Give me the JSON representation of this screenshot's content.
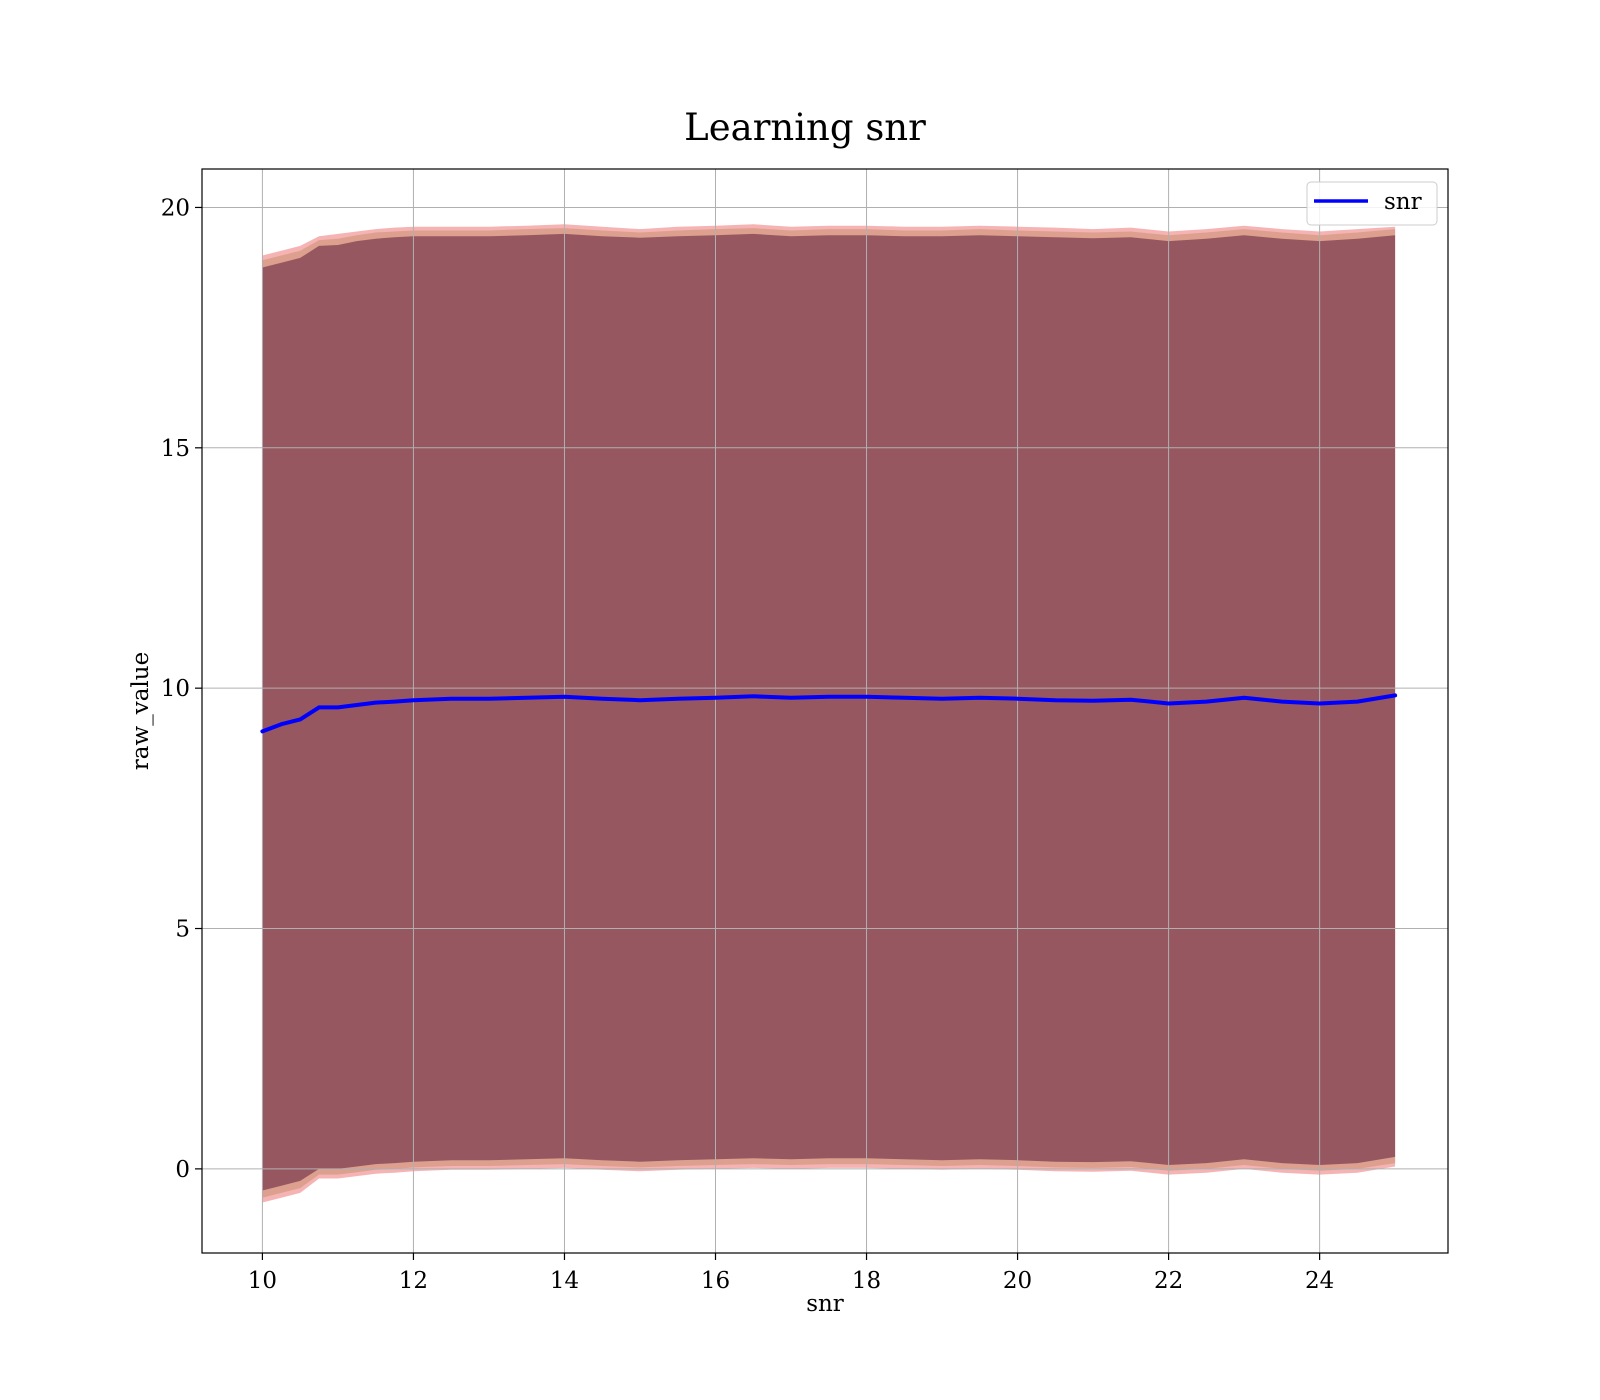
{
  "chart_data": {
    "type": "line",
    "title": "Learning snr",
    "xlabel": "snr",
    "ylabel": "raw_value",
    "xlim": [
      9.2,
      25.7
    ],
    "ylim": [
      -1.75,
      20.8
    ],
    "x_ticks": [
      10,
      12,
      14,
      16,
      18,
      20,
      22,
      24
    ],
    "y_ticks": [
      0,
      5,
      10,
      15,
      20
    ],
    "grid": true,
    "legend_position": "upper-right",
    "series": [
      {
        "name": "snr",
        "color": "#0000ff",
        "x": [
          10.0,
          10.25,
          10.5,
          10.75,
          11.0,
          11.25,
          11.5,
          11.75,
          12.0,
          12.5,
          13.0,
          13.5,
          14.0,
          14.5,
          15.0,
          15.5,
          16.0,
          16.5,
          17.0,
          17.5,
          18.0,
          18.5,
          19.0,
          19.5,
          20.0,
          20.5,
          21.0,
          21.5,
          22.0,
          22.5,
          23.0,
          23.5,
          24.0,
          24.5,
          25.0
        ],
        "y": [
          9.1,
          9.25,
          9.35,
          9.6,
          9.6,
          9.65,
          9.7,
          9.72,
          9.75,
          9.78,
          9.78,
          9.8,
          9.82,
          9.78,
          9.75,
          9.78,
          9.8,
          9.83,
          9.8,
          9.82,
          9.82,
          9.8,
          9.78,
          9.8,
          9.78,
          9.75,
          9.74,
          9.76,
          9.68,
          9.72,
          9.8,
          9.72,
          9.68,
          9.72,
          9.85
        ]
      }
    ],
    "bands": [
      {
        "color": "#f08080",
        "opacity": 0.6,
        "x": [
          10.0,
          10.25,
          10.5,
          10.75,
          11.0,
          11.25,
          11.5,
          11.75,
          12.0,
          12.5,
          13.0,
          13.5,
          14.0,
          14.5,
          15.0,
          15.5,
          16.0,
          16.5,
          17.0,
          17.5,
          18.0,
          18.5,
          19.0,
          19.5,
          20.0,
          20.5,
          21.0,
          21.5,
          22.0,
          22.5,
          23.0,
          23.5,
          24.0,
          24.5,
          25.0
        ],
        "upper": [
          19.0,
          19.1,
          19.2,
          19.4,
          19.45,
          19.5,
          19.55,
          19.58,
          19.6,
          19.6,
          19.6,
          19.62,
          19.65,
          19.6,
          19.55,
          19.6,
          19.62,
          19.65,
          19.6,
          19.62,
          19.62,
          19.6,
          19.6,
          19.62,
          19.6,
          19.58,
          19.55,
          19.58,
          19.5,
          19.55,
          19.62,
          19.55,
          19.5,
          19.55,
          19.6
        ],
        "lower": [
          -0.7,
          -0.6,
          -0.5,
          -0.2,
          -0.2,
          -0.15,
          -0.1,
          -0.08,
          -0.05,
          -0.02,
          -0.02,
          0.0,
          0.02,
          -0.02,
          -0.05,
          -0.02,
          0.0,
          0.02,
          0.0,
          0.02,
          0.02,
          0.0,
          -0.02,
          0.0,
          -0.02,
          -0.05,
          -0.06,
          -0.04,
          -0.12,
          -0.08,
          0.0,
          -0.08,
          -0.12,
          -0.08,
          0.05
        ]
      },
      {
        "color": "#c89070",
        "opacity": 0.55,
        "x": [
          10.0,
          10.25,
          10.5,
          10.75,
          11.0,
          11.25,
          11.5,
          11.75,
          12.0,
          12.5,
          13.0,
          13.5,
          14.0,
          14.5,
          15.0,
          15.5,
          16.0,
          16.5,
          17.0,
          17.5,
          18.0,
          18.5,
          19.0,
          19.5,
          20.0,
          20.5,
          21.0,
          21.5,
          22.0,
          22.5,
          23.0,
          23.5,
          24.0,
          24.5,
          25.0
        ],
        "upper": [
          18.9,
          19.0,
          19.1,
          19.32,
          19.35,
          19.42,
          19.48,
          19.5,
          19.52,
          19.52,
          19.52,
          19.55,
          19.57,
          19.52,
          19.48,
          19.52,
          19.55,
          19.57,
          19.52,
          19.55,
          19.55,
          19.52,
          19.52,
          19.55,
          19.52,
          19.5,
          19.48,
          19.5,
          19.42,
          19.48,
          19.55,
          19.48,
          19.42,
          19.48,
          19.55
        ],
        "lower": [
          -0.6,
          -0.5,
          -0.4,
          -0.12,
          -0.12,
          -0.07,
          -0.02,
          0.0,
          0.03,
          0.06,
          0.06,
          0.08,
          0.1,
          0.06,
          0.03,
          0.06,
          0.08,
          0.1,
          0.08,
          0.1,
          0.1,
          0.08,
          0.06,
          0.08,
          0.06,
          0.03,
          0.02,
          0.04,
          -0.04,
          0.0,
          0.08,
          0.0,
          -0.04,
          0.0,
          0.12
        ]
      },
      {
        "color": "#7a3a50",
        "opacity": 0.72,
        "x": [
          10.0,
          10.25,
          10.5,
          10.75,
          11.0,
          11.25,
          11.5,
          11.75,
          12.0,
          12.5,
          13.0,
          13.5,
          14.0,
          14.5,
          15.0,
          15.5,
          16.0,
          16.5,
          17.0,
          17.5,
          18.0,
          18.5,
          19.0,
          19.5,
          20.0,
          20.5,
          21.0,
          21.5,
          22.0,
          22.5,
          23.0,
          23.5,
          24.0,
          24.5,
          25.0
        ],
        "upper": [
          18.75,
          18.85,
          18.95,
          19.2,
          19.22,
          19.3,
          19.35,
          19.38,
          19.4,
          19.4,
          19.4,
          19.42,
          19.45,
          19.4,
          19.37,
          19.4,
          19.42,
          19.45,
          19.4,
          19.42,
          19.42,
          19.4,
          19.4,
          19.42,
          19.4,
          19.38,
          19.36,
          19.38,
          19.3,
          19.35,
          19.42,
          19.35,
          19.3,
          19.35,
          19.42
        ],
        "lower": [
          -0.45,
          -0.35,
          -0.25,
          0.0,
          0.0,
          0.05,
          0.1,
          0.12,
          0.15,
          0.18,
          0.18,
          0.2,
          0.22,
          0.18,
          0.15,
          0.18,
          0.2,
          0.22,
          0.2,
          0.22,
          0.22,
          0.2,
          0.18,
          0.2,
          0.18,
          0.15,
          0.14,
          0.16,
          0.08,
          0.12,
          0.2,
          0.12,
          0.08,
          0.12,
          0.25
        ]
      }
    ]
  }
}
